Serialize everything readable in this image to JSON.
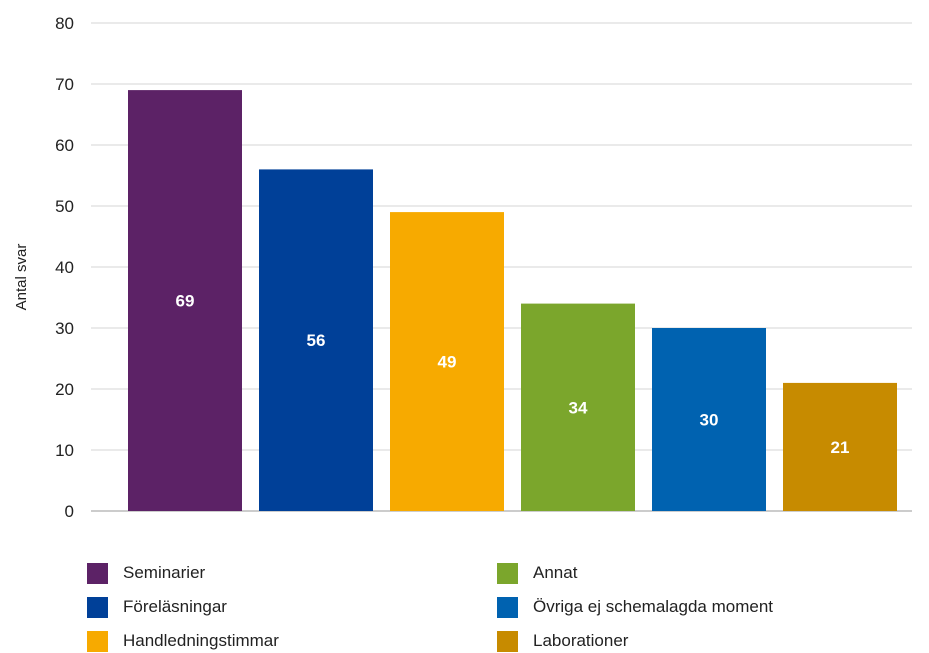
{
  "chart_data": {
    "type": "bar",
    "categories": [
      "Seminarier",
      "Föreläsningar",
      "Handledningstimmar",
      "Annat",
      "Övriga ej schemalagda moment",
      "Laborationer"
    ],
    "values": [
      69,
      56,
      49,
      34,
      30,
      21
    ],
    "colors": [
      "#5c2266",
      "#004098",
      "#f7aa00",
      "#7ba62c",
      "#0062b0",
      "#c78b00"
    ],
    "title": "",
    "xlabel": "",
    "ylabel": "Antal svar",
    "ylim": [
      0,
      80
    ],
    "yticks": [
      "0",
      "10",
      "20",
      "30",
      "40",
      "50",
      "60",
      "70",
      "80"
    ],
    "grid": true,
    "legend_placement": "bottom",
    "legend": [
      "Seminarier",
      "Föreläsningar",
      "Handledningstimmar",
      "Annat",
      "Övriga ej schemalagda moment",
      "Laborationer"
    ]
  }
}
